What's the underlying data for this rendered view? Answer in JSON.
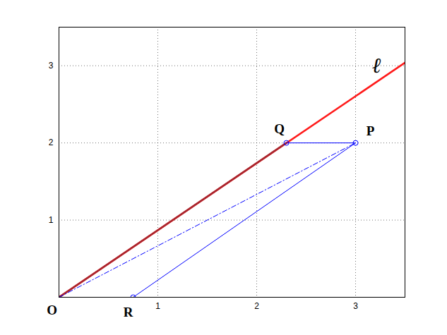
{
  "chart_data": {
    "type": "line",
    "xlim": [
      0,
      3.5
    ],
    "ylim": [
      0,
      3.5
    ],
    "xticks": [
      1,
      2,
      3
    ],
    "yticks": [
      1,
      2,
      3
    ],
    "grid": true,
    "series": [
      {
        "type": "line",
        "color": "#ff1a1a",
        "line_style": "solid",
        "x": [
          0,
          3.5
        ],
        "values": [
          0,
          3.04
        ]
      },
      {
        "type": "line",
        "color": "#a8262e",
        "line_style": "solid",
        "x": [
          0,
          2.3
        ],
        "values": [
          0,
          2
        ]
      },
      {
        "type": "line",
        "color": "#0000ff",
        "line_style": "solid",
        "x": [
          2.3,
          3
        ],
        "values": [
          2,
          2
        ]
      },
      {
        "type": "line",
        "color": "#0000ff",
        "line_style": "solid",
        "x": [
          3,
          0.75
        ],
        "values": [
          2,
          0
        ]
      },
      {
        "type": "line",
        "color": "#0000ff",
        "line_style": "dashdot",
        "x": [
          0,
          3
        ],
        "values": [
          0,
          2
        ]
      },
      {
        "type": "line",
        "color": "#00008b",
        "line_style": "solid",
        "x": [
          0,
          0.45
        ],
        "values": [
          0,
          0
        ]
      },
      {
        "type": "scatter",
        "color": "#0000ff",
        "marker": "circle",
        "x": [
          2.3,
          3,
          0.75
        ],
        "values": [
          2,
          2,
          0
        ]
      }
    ],
    "annotations": [
      {
        "text": "O",
        "x": -0.07,
        "y": -0.17
      },
      {
        "text": "R",
        "x": 0.7,
        "y": -0.2
      },
      {
        "text": "Q",
        "x": 2.23,
        "y": 2.18
      },
      {
        "text": "P",
        "x": 3.15,
        "y": 2.15
      },
      {
        "text": "ℓ",
        "x": 3.21,
        "y": 3.0
      }
    ]
  }
}
